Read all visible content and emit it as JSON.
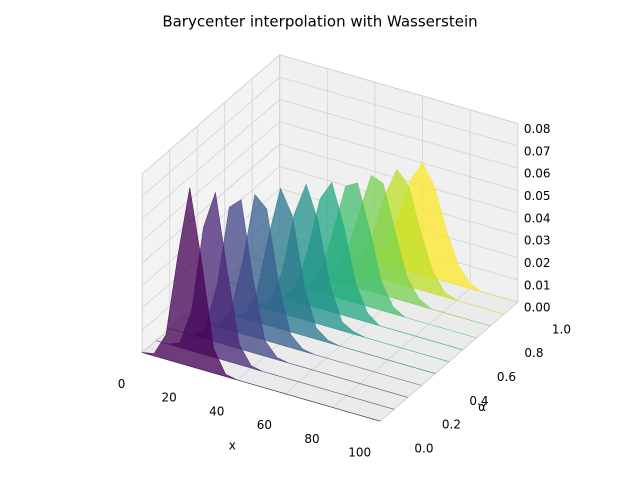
{
  "chart_data": {
    "type": "ridge3d",
    "title": "Barycenter interpolation with Wasserstein",
    "xlabel": "x",
    "ylabel": "α",
    "elev": 30,
    "azim": -60,
    "xlim": [
      0,
      100
    ],
    "ylim": [
      0,
      1
    ],
    "zlim": [
      0,
      0.08
    ],
    "xticks": [
      0,
      20,
      40,
      60,
      80,
      100
    ],
    "yticks": [
      {
        "value": 0,
        "label": "0.0"
      },
      0.2,
      0.4,
      0.6,
      0.8,
      {
        "value": 1,
        "label": "1.0"
      }
    ],
    "zticks": [
      {
        "value": 0,
        "label": "0.00"
      },
      0.01,
      0.02,
      0.03,
      0.04,
      0.05,
      0.06,
      0.07,
      0.08
    ],
    "grid": true,
    "x": [
      0,
      5,
      10,
      15,
      20,
      25,
      30,
      35,
      40,
      45,
      50,
      55,
      60,
      65,
      70,
      75,
      80,
      85,
      90,
      95,
      100
    ],
    "series": [
      {
        "y": 0,
        "color": "#440154",
        "values": [
          0,
          0.001,
          0.011,
          0.048,
          0.08,
          0.048,
          0.011,
          0.001,
          0,
          0,
          0,
          0,
          0,
          0,
          0,
          0,
          0,
          0,
          0,
          0,
          0
        ]
      },
      {
        "y": 0.1,
        "color": "#482475",
        "values": [
          0,
          0,
          0.002,
          0.018,
          0.057,
          0.074,
          0.04,
          0.009,
          0.001,
          0,
          0,
          0,
          0,
          0,
          0,
          0,
          0,
          0,
          0,
          0,
          0
        ]
      },
      {
        "y": 0.2,
        "color": "#414487",
        "values": [
          0,
          0,
          0,
          0.005,
          0.026,
          0.062,
          0.067,
          0.033,
          0.007,
          0.001,
          0,
          0,
          0,
          0,
          0,
          0,
          0,
          0,
          0,
          0,
          0
        ]
      },
      {
        "y": 0.3,
        "color": "#355f8d",
        "values": [
          0,
          0,
          0,
          0.001,
          0.009,
          0.033,
          0.064,
          0.059,
          0.027,
          0.006,
          0.001,
          0,
          0,
          0,
          0,
          0,
          0,
          0,
          0,
          0,
          0
        ]
      },
      {
        "y": 0.4,
        "color": "#2a788e",
        "values": [
          0,
          0,
          0,
          0,
          0.002,
          0.013,
          0.04,
          0.063,
          0.052,
          0.022,
          0.005,
          0.001,
          0,
          0,
          0,
          0,
          0,
          0,
          0,
          0,
          0
        ]
      },
      {
        "y": 0.5,
        "color": "#21918c",
        "values": [
          0,
          0,
          0,
          0,
          0.001,
          0.004,
          0.019,
          0.046,
          0.061,
          0.046,
          0.019,
          0.004,
          0.001,
          0,
          0,
          0,
          0,
          0,
          0,
          0,
          0
        ]
      },
      {
        "y": 0.6,
        "color": "#22a884",
        "values": [
          0,
          0,
          0,
          0,
          0,
          0.001,
          0.007,
          0.025,
          0.049,
          0.058,
          0.04,
          0.016,
          0.004,
          0,
          0,
          0,
          0,
          0,
          0,
          0,
          0
        ]
      },
      {
        "y": 0.7,
        "color": "#44bf70",
        "values": [
          0,
          0,
          0,
          0,
          0,
          0,
          0.002,
          0.011,
          0.03,
          0.051,
          0.054,
          0.035,
          0.013,
          0.003,
          0,
          0,
          0,
          0,
          0,
          0,
          0
        ]
      },
      {
        "y": 0.8,
        "color": "#7ad151",
        "values": [
          0,
          0,
          0,
          0,
          0,
          0,
          0.001,
          0.004,
          0.015,
          0.034,
          0.052,
          0.05,
          0.03,
          0.011,
          0.003,
          0,
          0,
          0,
          0,
          0,
          0
        ]
      },
      {
        "y": 0.9,
        "color": "#bddf26",
        "values": [
          0,
          0,
          0,
          0,
          0,
          0,
          0,
          0.001,
          0.006,
          0.019,
          0.038,
          0.051,
          0.045,
          0.026,
          0.01,
          0.002,
          0,
          0,
          0,
          0,
          0
        ]
      },
      {
        "y": 1,
        "color": "#fde725",
        "values": [
          0,
          0,
          0,
          0,
          0,
          0,
          0,
          0,
          0.002,
          0.009,
          0.023,
          0.041,
          0.05,
          0.041,
          0.023,
          0.009,
          0.002,
          0,
          0,
          0,
          0
        ]
      }
    ]
  }
}
